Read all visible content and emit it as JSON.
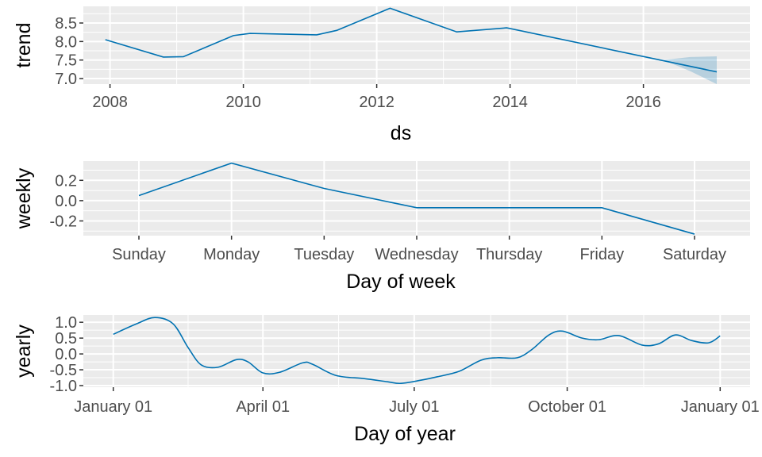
{
  "colors": {
    "line": "#0072B2",
    "band": "#0072B2",
    "panel": "#EBEBEB",
    "grid": "#FFFFFF",
    "text": "#4D4D4D"
  },
  "chart_data": [
    {
      "name": "trend",
      "type": "line",
      "xlabel": "ds",
      "ylabel": "trend",
      "x_scale": "date",
      "xlim": [
        2007.6,
        2017.6
      ],
      "ylim": [
        6.85,
        8.95
      ],
      "x_ticks": [
        2008,
        2010,
        2012,
        2014,
        2016
      ],
      "x_tick_labels": [
        "2008",
        "2010",
        "2012",
        "2014",
        "2016"
      ],
      "y_ticks": [
        7.0,
        7.5,
        8.0,
        8.5
      ],
      "y_tick_labels": [
        "7.0",
        "7.5",
        "8.0",
        "8.5"
      ],
      "grid": true,
      "series": [
        {
          "values": [
            [
              2007.93,
              8.05
            ],
            [
              2008.8,
              7.58
            ],
            [
              2009.1,
              7.59
            ],
            [
              2009.85,
              8.16
            ],
            [
              2010.1,
              8.22
            ],
            [
              2011.1,
              8.18
            ],
            [
              2011.4,
              8.3
            ],
            [
              2012.2,
              8.9
            ],
            [
              2013.2,
              8.26
            ],
            [
              2013.95,
              8.37
            ],
            [
              2017.1,
              7.18
            ]
          ],
          "uncertainty": [
            [
              2016.3,
              7.5,
              7.5
            ],
            [
              2016.7,
              7.2,
              7.58
            ],
            [
              2017.1,
              6.85,
              7.6
            ]
          ]
        }
      ]
    },
    {
      "name": "weekly",
      "type": "line",
      "xlabel": "Day of week",
      "ylabel": "weekly",
      "ylim": [
        -0.345,
        0.39
      ],
      "categories": [
        "Sunday",
        "Monday",
        "Tuesday",
        "Wednesday",
        "Thursday",
        "Friday",
        "Saturday"
      ],
      "y_ticks": [
        -0.2,
        0.0,
        0.2
      ],
      "y_tick_labels": [
        "-0.2",
        "0.0",
        "0.2"
      ],
      "grid": true,
      "series": [
        {
          "values": [
            0.05,
            0.37,
            0.12,
            -0.07,
            -0.07,
            -0.07,
            -0.33
          ]
        }
      ]
    },
    {
      "name": "yearly",
      "type": "line",
      "xlabel": "Day of year",
      "ylabel": "yearly",
      "x_scale": "date",
      "xlim": [
        "2016-12-14",
        "2018-01-19"
      ],
      "ylim": [
        -1.05,
        1.23
      ],
      "x_ticks": [
        "2017-01-01",
        "2017-04-01",
        "2017-07-01",
        "2017-10-01",
        "2018-01-01"
      ],
      "x_tick_labels": [
        "January 01",
        "April 01",
        "July 01",
        "October 01",
        "January 01"
      ],
      "y_ticks": [
        -1.0,
        -0.5,
        0.0,
        0.5,
        1.0
      ],
      "y_tick_labels": [
        "-1.0",
        "-0.5",
        "0.0",
        "0.5",
        "1.0"
      ],
      "grid": true,
      "series": [
        {
          "values": [
            [
              "2017-01-01",
              0.62
            ],
            [
              "2017-01-15",
              0.95
            ],
            [
              "2017-01-26",
              1.15
            ],
            [
              "2017-02-06",
              0.95
            ],
            [
              "2017-02-15",
              0.2
            ],
            [
              "2017-02-23",
              -0.35
            ],
            [
              "2017-03-05",
              -0.42
            ],
            [
              "2017-03-16",
              -0.18
            ],
            [
              "2017-03-23",
              -0.25
            ],
            [
              "2017-04-01",
              -0.6
            ],
            [
              "2017-04-11",
              -0.58
            ],
            [
              "2017-04-25",
              -0.28
            ],
            [
              "2017-05-01",
              -0.33
            ],
            [
              "2017-05-15",
              -0.68
            ],
            [
              "2017-06-01",
              -0.78
            ],
            [
              "2017-06-15",
              -0.88
            ],
            [
              "2017-06-23",
              -0.93
            ],
            [
              "2017-07-05",
              -0.83
            ],
            [
              "2017-07-15",
              -0.72
            ],
            [
              "2017-07-28",
              -0.55
            ],
            [
              "2017-08-10",
              -0.2
            ],
            [
              "2017-08-20",
              -0.12
            ],
            [
              "2017-09-01",
              -0.12
            ],
            [
              "2017-09-10",
              0.15
            ],
            [
              "2017-09-20",
              0.6
            ],
            [
              "2017-09-28",
              0.72
            ],
            [
              "2017-10-10",
              0.5
            ],
            [
              "2017-10-20",
              0.45
            ],
            [
              "2017-11-01",
              0.58
            ],
            [
              "2017-11-15",
              0.28
            ],
            [
              "2017-11-25",
              0.32
            ],
            [
              "2017-12-05",
              0.6
            ],
            [
              "2017-12-15",
              0.42
            ],
            [
              "2017-12-25",
              0.35
            ],
            [
              "2018-01-01",
              0.57
            ]
          ]
        }
      ]
    }
  ]
}
